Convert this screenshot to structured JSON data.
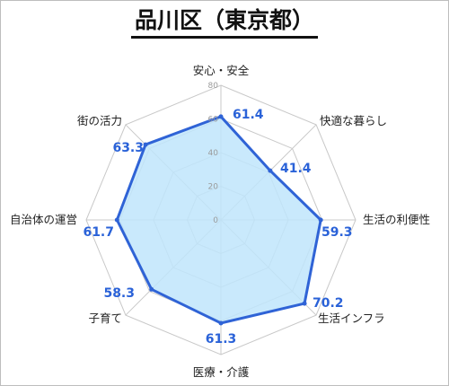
{
  "title": "品川区（東京都）",
  "chart_data": {
    "type": "radar",
    "title": "品川区（東京都）",
    "categories": [
      "安心・安全",
      "快適な暮らし",
      "生活の利便性",
      "生活インフラ",
      "医療・介護",
      "子育て",
      "自治体の運営",
      "街の活力"
    ],
    "series": [
      {
        "values": [
          61.4,
          41.4,
          59.3,
          70.2,
          61.3,
          58.3,
          61.7,
          63.3
        ]
      }
    ],
    "value_labels": [
      "61.4",
      "41.4",
      "59.3",
      "70.2",
      "61.3",
      "58.3",
      "61.7",
      "63.3"
    ],
    "rlim": [
      0,
      80
    ],
    "ticks": [
      0,
      20,
      40,
      60,
      80
    ],
    "tick_labels": [
      "0",
      "20",
      "40",
      "60",
      "80"
    ],
    "grid": true,
    "colors": {
      "line": "#2f63d6",
      "fill": "#bfe5fb",
      "grid": "#c8c8c8"
    }
  }
}
